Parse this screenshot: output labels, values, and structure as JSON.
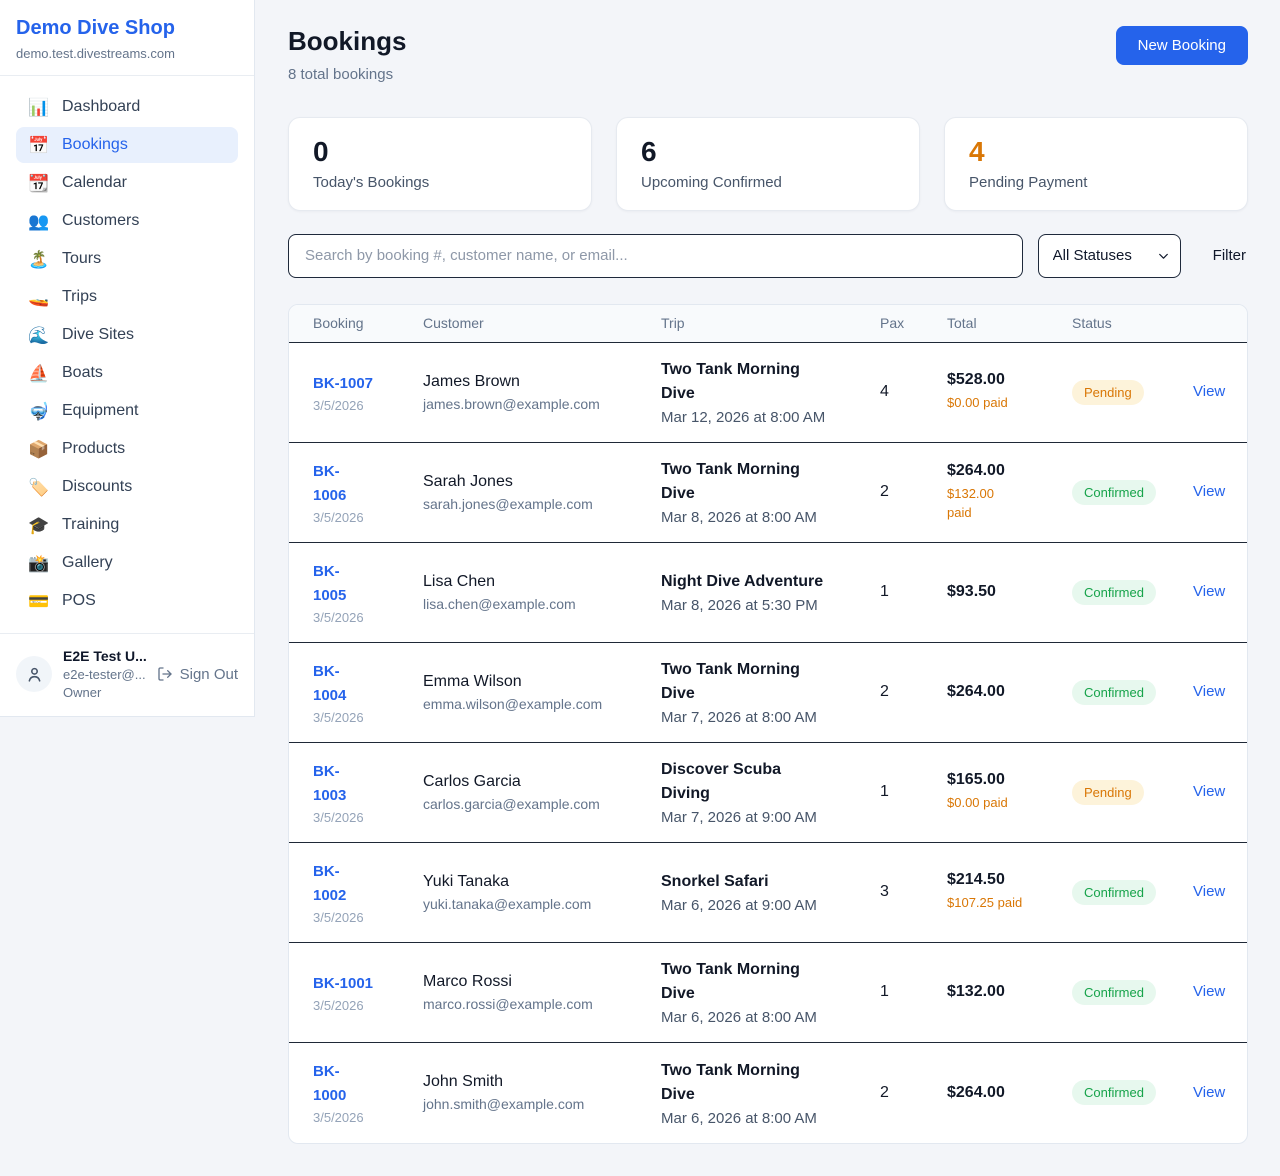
{
  "colors": {
    "accent_blue": "#2563eb",
    "pending_orange": "#d97706",
    "confirmed_green": "#16a34a"
  },
  "sidebar": {
    "brand": "Demo Dive Shop",
    "domain": "demo.test.divestreams.com",
    "items": [
      {
        "name": "dashboard",
        "icon": "📊",
        "label": "Dashboard",
        "active": false
      },
      {
        "name": "bookings",
        "icon": "📅",
        "label": "Bookings",
        "active": true
      },
      {
        "name": "calendar",
        "icon": "📆",
        "label": "Calendar",
        "active": false
      },
      {
        "name": "customers",
        "icon": "👥",
        "label": "Customers",
        "active": false
      },
      {
        "name": "tours",
        "icon": "🏝️",
        "label": "Tours",
        "active": false
      },
      {
        "name": "trips",
        "icon": "🚤",
        "label": "Trips",
        "active": false
      },
      {
        "name": "dive-sites",
        "icon": "🌊",
        "label": "Dive Sites",
        "active": false
      },
      {
        "name": "boats",
        "icon": "⛵",
        "label": "Boats",
        "active": false
      },
      {
        "name": "equipment",
        "icon": "🤿",
        "label": "Equipment",
        "active": false
      },
      {
        "name": "products",
        "icon": "📦",
        "label": "Products",
        "active": false
      },
      {
        "name": "discounts",
        "icon": "🏷️",
        "label": "Discounts",
        "active": false
      },
      {
        "name": "training",
        "icon": "🎓",
        "label": "Training",
        "active": false
      },
      {
        "name": "gallery",
        "icon": "📸",
        "label": "Gallery",
        "active": false
      },
      {
        "name": "pos",
        "icon": "💳",
        "label": "POS",
        "active": false
      }
    ],
    "user": {
      "name": "E2E Test U...",
      "email": "e2e-tester@...",
      "role": "Owner",
      "sign_out_label": "Sign Out"
    }
  },
  "header": {
    "title": "Bookings",
    "subtitle": "8 total bookings",
    "new_booking_label": "New Booking"
  },
  "stats": [
    {
      "value": "0",
      "label": "Today's Bookings"
    },
    {
      "value": "6",
      "label": "Upcoming Confirmed"
    },
    {
      "value": "4",
      "label": "Pending Payment",
      "accent_color": "#d97706"
    }
  ],
  "controls": {
    "search_placeholder": "Search by booking #, customer name, or email...",
    "search_value": "",
    "status_filter": "All Statuses",
    "filter_label": "Filter"
  },
  "table": {
    "columns": [
      "Booking",
      "Customer",
      "Trip",
      "Pax",
      "Total",
      "Status"
    ],
    "rows": [
      {
        "booking_no": "BK-1007",
        "booking_wrap": false,
        "booking_date": "3/5/2026",
        "customer": "James Brown",
        "email": "james.brown@example.com",
        "trip": "Two Tank Morning Dive",
        "trip_datetime": "Mar 12, 2026 at 8:00 AM",
        "pax": "4",
        "total": "$528.00",
        "paid": "$0.00 paid",
        "paid_wrap": false,
        "status": "Pending",
        "status_type": "pending",
        "view": "View"
      },
      {
        "booking_no": "BK-1006",
        "booking_wrap": true,
        "booking_date": "3/5/2026",
        "customer": "Sarah Jones",
        "email": "sarah.jones@example.com",
        "trip": "Two Tank Morning Dive",
        "trip_datetime": "Mar 8, 2026 at 8:00 AM",
        "pax": "2",
        "total": "$264.00",
        "paid": "$132.00 paid",
        "paid_wrap": true,
        "status": "Confirmed",
        "status_type": "confirmed",
        "view": "View"
      },
      {
        "booking_no": "BK-1005",
        "booking_wrap": true,
        "booking_date": "3/5/2026",
        "customer": "Lisa Chen",
        "email": "lisa.chen@example.com",
        "trip": "Night Dive Adventure",
        "trip_datetime": "Mar 8, 2026 at 5:30 PM",
        "pax": "1",
        "total": "$93.50",
        "paid": "",
        "paid_wrap": false,
        "status": "Confirmed",
        "status_type": "confirmed",
        "view": "View"
      },
      {
        "booking_no": "BK-1004",
        "booking_wrap": true,
        "booking_date": "3/5/2026",
        "customer": "Emma Wilson",
        "email": "emma.wilson@example.com",
        "trip": "Two Tank Morning Dive",
        "trip_datetime": "Mar 7, 2026 at 8:00 AM",
        "pax": "2",
        "total": "$264.00",
        "paid": "",
        "paid_wrap": false,
        "status": "Confirmed",
        "status_type": "confirmed",
        "view": "View"
      },
      {
        "booking_no": "BK-1003",
        "booking_wrap": true,
        "booking_date": "3/5/2026",
        "customer": "Carlos Garcia",
        "email": "carlos.garcia@example.com",
        "trip": "Discover Scuba Diving",
        "trip_datetime": "Mar 7, 2026 at 9:00 AM",
        "pax": "1",
        "total": "$165.00",
        "paid": "$0.00 paid",
        "paid_wrap": false,
        "status": "Pending",
        "status_type": "pending",
        "view": "View"
      },
      {
        "booking_no": "BK-1002",
        "booking_wrap": true,
        "booking_date": "3/5/2026",
        "customer": "Yuki Tanaka",
        "email": "yuki.tanaka@example.com",
        "trip": "Snorkel Safari",
        "trip_datetime": "Mar 6, 2026 at 9:00 AM",
        "pax": "3",
        "total": "$214.50",
        "paid": "$107.25 paid",
        "paid_wrap": false,
        "status": "Confirmed",
        "status_type": "confirmed",
        "view": "View"
      },
      {
        "booking_no": "BK-1001",
        "booking_wrap": false,
        "booking_date": "3/5/2026",
        "customer": "Marco Rossi",
        "email": "marco.rossi@example.com",
        "trip": "Two Tank Morning Dive",
        "trip_datetime": "Mar 6, 2026 at 8:00 AM",
        "pax": "1",
        "total": "$132.00",
        "paid": "",
        "paid_wrap": false,
        "status": "Confirmed",
        "status_type": "confirmed",
        "view": "View"
      },
      {
        "booking_no": "BK-1000",
        "booking_wrap": true,
        "booking_date": "3/5/2026",
        "customer": "John Smith",
        "email": "john.smith@example.com",
        "trip": "Two Tank Morning Dive",
        "trip_datetime": "Mar 6, 2026 at 8:00 AM",
        "pax": "2",
        "total": "$264.00",
        "paid": "",
        "paid_wrap": false,
        "status": "Confirmed",
        "status_type": "confirmed",
        "view": "View"
      }
    ]
  }
}
